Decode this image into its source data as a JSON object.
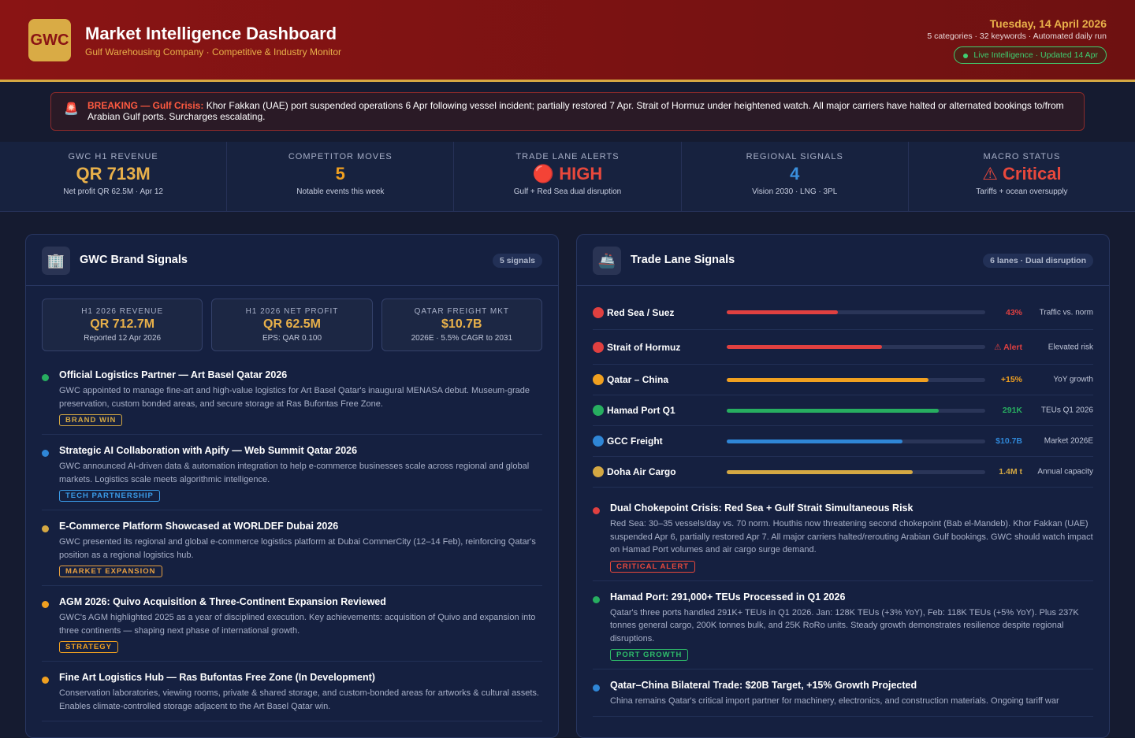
{
  "header": {
    "logo": "GWC",
    "title": "Market Intelligence Dashboard",
    "subtitle": "Gulf Warehousing Company · Competitive & Industry Monitor",
    "date": "Tuesday, 14 April 2026",
    "meta": "5 categories · 32 keywords · Automated daily run",
    "status": "Live Intelligence · Updated 14 Apr"
  },
  "alert": {
    "icon": "🚨",
    "label": "BREAKING — Gulf Crisis:",
    "text": "Khor Fakkan (UAE) port suspended operations 6 Apr following vessel incident; partially restored 7 Apr. Strait of Hormuz under heightened watch. All major carriers have halted or alternated bookings to/from Arabian Gulf ports. Surcharges escalating."
  },
  "kpis": [
    {
      "label": "GWC H1 REVENUE",
      "value": "QR 713M",
      "note": "Net profit QR 62.5M · Apr 12",
      "color": "#e8b04a"
    },
    {
      "label": "COMPETITOR MOVES",
      "value": "5",
      "note": "Notable events this week",
      "color": "#f0a020"
    },
    {
      "label": "TRADE LANE ALERTS",
      "value": "🔴 HIGH",
      "note": "Gulf + Red Sea dual disruption",
      "color": "#e8483c"
    },
    {
      "label": "REGIONAL SIGNALS",
      "value": "4",
      "note": "Vision 2030 · LNG · 3PL",
      "color": "#3a8fdc"
    },
    {
      "label": "MACRO STATUS",
      "value": "⚠ Critical",
      "note": "Tariffs + ocean oversupply",
      "color": "#e8483c"
    }
  ],
  "brand_panel": {
    "icon": "🏢",
    "title": "GWC Brand Signals",
    "badge": "5 signals",
    "stats": [
      {
        "label": "H1 2026 REVENUE",
        "value": "QR 712.7M",
        "note": "Reported 12 Apr 2026"
      },
      {
        "label": "H1 2026 NET PROFIT",
        "value": "QR 62.5M",
        "note": "EPS: QAR 0.100"
      },
      {
        "label": "QATAR FREIGHT MKT",
        "value": "$10.7B",
        "note": "2026E · 5.5% CAGR to 2031"
      }
    ],
    "items": [
      {
        "title": "Official Logistics Partner — Art Basel Qatar 2026",
        "text": "GWC appointed to manage fine-art and high-value logistics for Art Basel Qatar's inaugural MENASA debut. Museum-grade preservation, custom bonded areas, and secure storage at Ras Bufontas Free Zone.",
        "tag": "BRAND WIN",
        "color": "#27ae60",
        "tag_color": "#d4a843"
      },
      {
        "title": "Strategic AI Collaboration with Apify — Web Summit Qatar 2026",
        "text": "GWC announced AI-driven data & automation integration to help e-commerce businesses scale across regional and global markets. Logistics scale meets algorithmic intelligence.",
        "tag": "TECH PARTNERSHIP",
        "color": "#2f86d6",
        "tag_color": "#3a9be8"
      },
      {
        "title": "E-Commerce Platform Showcased at WORLDEF Dubai 2026",
        "text": "GWC presented its regional and global e-commerce logistics platform at Dubai CommerCity (12–14 Feb), reinforcing Qatar's position as a regional logistics hub.",
        "tag": "MARKET EXPANSION",
        "color": "#d4a843",
        "tag_color": "#e8a040"
      },
      {
        "title": "AGM 2026: Quivo Acquisition & Three-Continent Expansion Reviewed",
        "text": "GWC's AGM highlighted 2025 as a year of disciplined execution. Key achievements: acquisition of Quivo and expansion into three continents — shaping next phase of international growth.",
        "tag": "STRATEGY",
        "color": "#f0a020",
        "tag_color": "#f0a020"
      },
      {
        "title": "Fine Art Logistics Hub — Ras Bufontas Free Zone (In Development)",
        "text": "Conservation laboratories, viewing rooms, private & shared storage, and custom-bonded areas for artworks & cultural assets. Enables climate-controlled storage adjacent to the Art Basel Qatar win.",
        "color": "#f0a020"
      }
    ]
  },
  "trade_panel": {
    "icon": "🚢",
    "title": "Trade Lane Signals",
    "badge": "6 lanes · Dual disruption",
    "lanes": [
      {
        "name": "Red Sea / Suez",
        "bar": 43,
        "value": "43%",
        "note": "Traffic vs. norm",
        "color": "#e04040"
      },
      {
        "name": "Strait of Hormuz",
        "bar": 60,
        "value": "⚠ Alert",
        "note": "Elevated risk",
        "color": "#e04040"
      },
      {
        "name": "Qatar – China",
        "bar": 78,
        "value": "+15%",
        "note": "YoY growth",
        "color": "#f0a020"
      },
      {
        "name": "Hamad Port Q1",
        "bar": 82,
        "value": "291K",
        "note": "TEUs Q1 2026",
        "color": "#27ae60"
      },
      {
        "name": "GCC Freight",
        "bar": 68,
        "value": "$10.7B",
        "note": "Market 2026E",
        "color": "#2f86d6"
      },
      {
        "name": "Doha Air Cargo",
        "bar": 72,
        "value": "1.4M t",
        "note": "Annual capacity",
        "color": "#d4a843"
      }
    ],
    "items": [
      {
        "title": "Dual Chokepoint Crisis: Red Sea + Gulf Strait Simultaneous Risk",
        "text": "Red Sea: 30–35 vessels/day vs. 70 norm. Houthis now threatening second chokepoint (Bab el-Mandeb). Khor Fakkan (UAE) suspended Apr 6, partially restored Apr 7. All major carriers halted/rerouting Arabian Gulf bookings. GWC should watch impact on Hamad Port volumes and air cargo surge demand.",
        "tag": "CRITICAL ALERT",
        "color": "#e04040",
        "tag_color": "#e8483c"
      },
      {
        "title": "Hamad Port: 291,000+ TEUs Processed in Q1 2026",
        "text": "Qatar's three ports handled 291K+ TEUs in Q1 2026. Jan: 128K TEUs (+3% YoY), Feb: 118K TEUs (+5% YoY). Plus 237K tonnes general cargo, 200K tonnes bulk, and 25K RoRo units. Steady growth demonstrates resilience despite regional disruptions.",
        "tag": "PORT GROWTH",
        "color": "#27ae60",
        "tag_color": "#2ebd6a"
      },
      {
        "title": "Qatar–China Bilateral Trade: $20B Target, +15% Growth Projected",
        "text": "China remains Qatar's critical import partner for machinery, electronics, and construction materials. Ongoing tariff war",
        "color": "#2f86d6"
      }
    ]
  }
}
